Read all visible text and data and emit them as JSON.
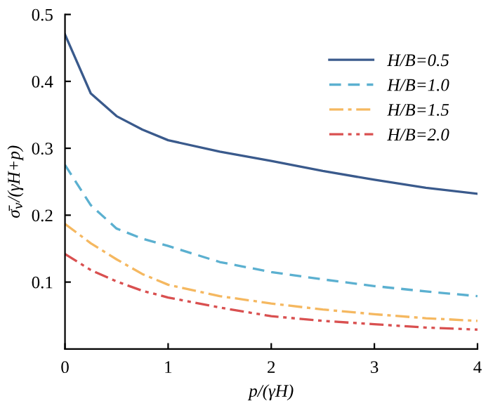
{
  "chart_data": {
    "type": "line",
    "xlabel": "p/(γH)",
    "ylabel": "σ̄$_{v}$/(γH+p)",
    "x": [
      0,
      0.25,
      0.5,
      0.75,
      1,
      1.5,
      2,
      2.5,
      3,
      3.5,
      4
    ],
    "series": [
      {
        "name": "H/B=0.5",
        "color": "#3a5a8c",
        "line_style": "solid",
        "values": [
          0.47,
          0.382,
          0.348,
          0.328,
          0.312,
          0.295,
          0.281,
          0.266,
          0.253,
          0.241,
          0.232
        ]
      },
      {
        "name": "H/B=1.0",
        "color": "#5bb0d0",
        "line_style": "dashed",
        "values": [
          0.275,
          0.215,
          0.18,
          0.165,
          0.154,
          0.13,
          0.115,
          0.104,
          0.094,
          0.086,
          0.079
        ]
      },
      {
        "name": "H/B=1.5",
        "color": "#f5b860",
        "line_style": "dashdot",
        "values": [
          0.187,
          0.158,
          0.134,
          0.112,
          0.096,
          0.079,
          0.068,
          0.059,
          0.052,
          0.046,
          0.042
        ]
      },
      {
        "name": "H/B=2.0",
        "color": "#d95050",
        "line_style": "dashdotdot",
        "values": [
          0.142,
          0.118,
          0.101,
          0.087,
          0.077,
          0.062,
          0.049,
          0.042,
          0.037,
          0.032,
          0.029
        ]
      }
    ],
    "xlim": [
      0,
      4
    ],
    "ylim": [
      0,
      0.5
    ],
    "xticks": [
      0,
      1,
      2,
      3,
      4
    ],
    "yticks": [
      0.1,
      0.2,
      0.3,
      0.4,
      0.5
    ],
    "legend": "top right",
    "grid": false
  }
}
